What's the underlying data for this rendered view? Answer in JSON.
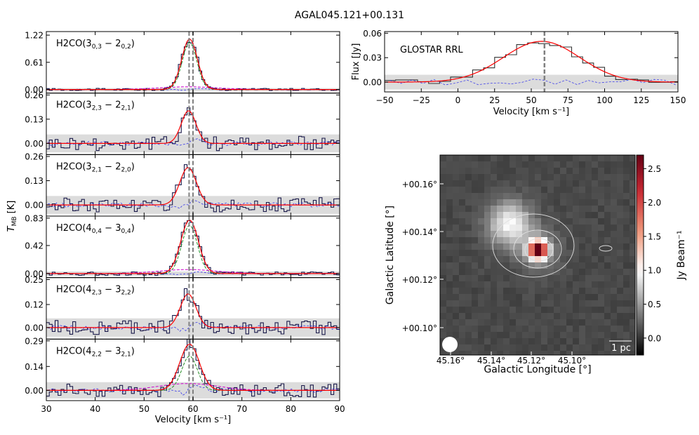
{
  "figure_title": "AGAL045.121+00.131",
  "colors": {
    "step": "#000000",
    "fit": "#ff0000",
    "residual": "#0000ee",
    "component_green": "#228b22",
    "component_magenta": "#cc00cc",
    "vline": "#808080",
    "noise_band": "#dcdcdc"
  },
  "chart_data": [
    {
      "type": "line",
      "id": "spectra",
      "xlabel": "Velocity [km s⁻¹]",
      "ylabel": "T_MB [K]",
      "xlim": [
        30,
        90
      ],
      "x_ticks": [
        "30",
        "40",
        "50",
        "60",
        "70",
        "80",
        "90"
      ],
      "vlines": [
        59.2,
        60.0
      ],
      "panels": [
        {
          "label": "H₂CO(3₀,₃ − 2₀,₂)",
          "label_main": "H2CO(3",
          "sub1": "0,3",
          "mid": " − 2",
          "sub2": "0,2",
          "end": ")",
          "yticks": [
            "0.00",
            "0.61",
            "1.22"
          ],
          "ylim": [
            -0.08,
            1.3
          ],
          "center": 59.3,
          "width": 1.6,
          "amp": 1.13,
          "noise": 0.02,
          "resid_amp": 0.025,
          "components": [
            {
              "amp": 1.05,
              "center": 59.3,
              "width": 1.5,
              "style": "green"
            },
            {
              "amp": 0.06,
              "center": 59.0,
              "width": 6.0,
              "style": "magenta"
            }
          ]
        },
        {
          "label": "H₂CO(3₂,₃ − 2₂,₁)",
          "label_main": "H2CO(3",
          "sub1": "2,3",
          "mid": " − 2",
          "sub2": "2,1",
          "end": ")",
          "yticks": [
            "0.00",
            "0.13",
            "0.26"
          ],
          "ylim": [
            -0.06,
            0.27
          ],
          "center": 59.1,
          "width": 1.5,
          "amp": 0.175,
          "noise": 0.03,
          "resid_amp": 0.025,
          "components": []
        },
        {
          "label": "H₂CO(3₂,₁ − 2₂,₀)",
          "label_main": "H2CO(3",
          "sub1": "2,1",
          "mid": " − 2",
          "sub2": "2,0",
          "end": ")",
          "yticks": [
            "0.00",
            "0.13",
            "0.26"
          ],
          "ylim": [
            -0.06,
            0.27
          ],
          "center": 59.0,
          "width": 1.7,
          "amp": 0.2,
          "noise": 0.03,
          "resid_amp": 0.02,
          "components": []
        },
        {
          "label": "H₂CO(4₀,₄ − 3₀,₄)",
          "label_main": "H2CO(4",
          "sub1": "0,4",
          "mid": " − 3",
          "sub2": "0,4",
          "end": ")",
          "yticks": [
            "0.00",
            "0.42",
            "0.83"
          ],
          "ylim": [
            -0.06,
            0.86
          ],
          "center": 59.3,
          "width": 1.8,
          "amp": 0.8,
          "noise": 0.02,
          "resid_amp": 0.03,
          "components": [
            {
              "amp": 0.72,
              "center": 59.3,
              "width": 1.6,
              "style": "green"
            },
            {
              "amp": 0.06,
              "center": 59.0,
              "width": 6.0,
              "style": "magenta"
            }
          ]
        },
        {
          "label": "H₂CO(4₂,₃ − 3₂,₂)",
          "label_main": "H2CO(4",
          "sub1": "2,3",
          "mid": " − 3",
          "sub2": "2,2",
          "end": ")",
          "yticks": [
            "0.00",
            "0.12",
            "0.25"
          ],
          "ylim": [
            -0.06,
            0.26
          ],
          "center": 59.0,
          "width": 1.6,
          "amp": 0.175,
          "noise": 0.03,
          "resid_amp": 0.03,
          "components": []
        },
        {
          "label": "H₂CO(4₂,₂ − 3₂,₁)",
          "label_main": "H2CO(4",
          "sub1": "2,2",
          "mid": " − 3",
          "sub2": "2,1",
          "end": ")",
          "yticks": [
            "0.00",
            "0.14",
            "0.29"
          ],
          "ylim": [
            -0.06,
            0.3
          ],
          "center": 59.3,
          "width": 2.0,
          "amp": 0.27,
          "noise": 0.03,
          "resid_amp": 0.03,
          "components": [
            {
              "amp": 0.2,
              "center": 59.3,
              "width": 1.6,
              "style": "green"
            },
            {
              "amp": 0.04,
              "center": 59.0,
              "width": 6.0,
              "style": "magenta"
            }
          ]
        }
      ]
    },
    {
      "type": "line",
      "id": "rrl",
      "label": "GLOSTAR RRL",
      "xlabel": "Velocity [km s⁻¹]",
      "ylabel": "Flux [Jy]",
      "xlim": [
        -50,
        150
      ],
      "ylim": [
        -0.012,
        0.062
      ],
      "x_ticks": [
        "−50",
        "−25",
        "0",
        "25",
        "50",
        "75",
        "100",
        "125",
        "150"
      ],
      "y_ticks": [
        "0.00",
        "0.03",
        "0.06"
      ],
      "vline": 59.0,
      "fit": {
        "amp": 0.05,
        "center": 57.0,
        "sigma": 26.0
      },
      "noise_band": 0.009
    },
    {
      "type": "heatmap",
      "id": "map",
      "xlabel": "Galactic Longitude [°]",
      "ylabel": "Galactic Latitude [°]",
      "x_ticks": [
        "45.16°",
        "45.14°",
        "45.12°",
        "45.10°"
      ],
      "y_ticks": [
        "+00.10°",
        "+00.12°",
        "+00.14°",
        "+00.16°"
      ],
      "colorbar_label": "Jy Beam⁻¹",
      "colorbar_ticks": [
        "0.0",
        "0.5",
        "1.0",
        "1.5",
        "2.0",
        "2.5"
      ],
      "colorbar_range": [
        -0.25,
        2.7
      ],
      "scalebar": "1 pc",
      "peak_value": 2.6
    }
  ]
}
